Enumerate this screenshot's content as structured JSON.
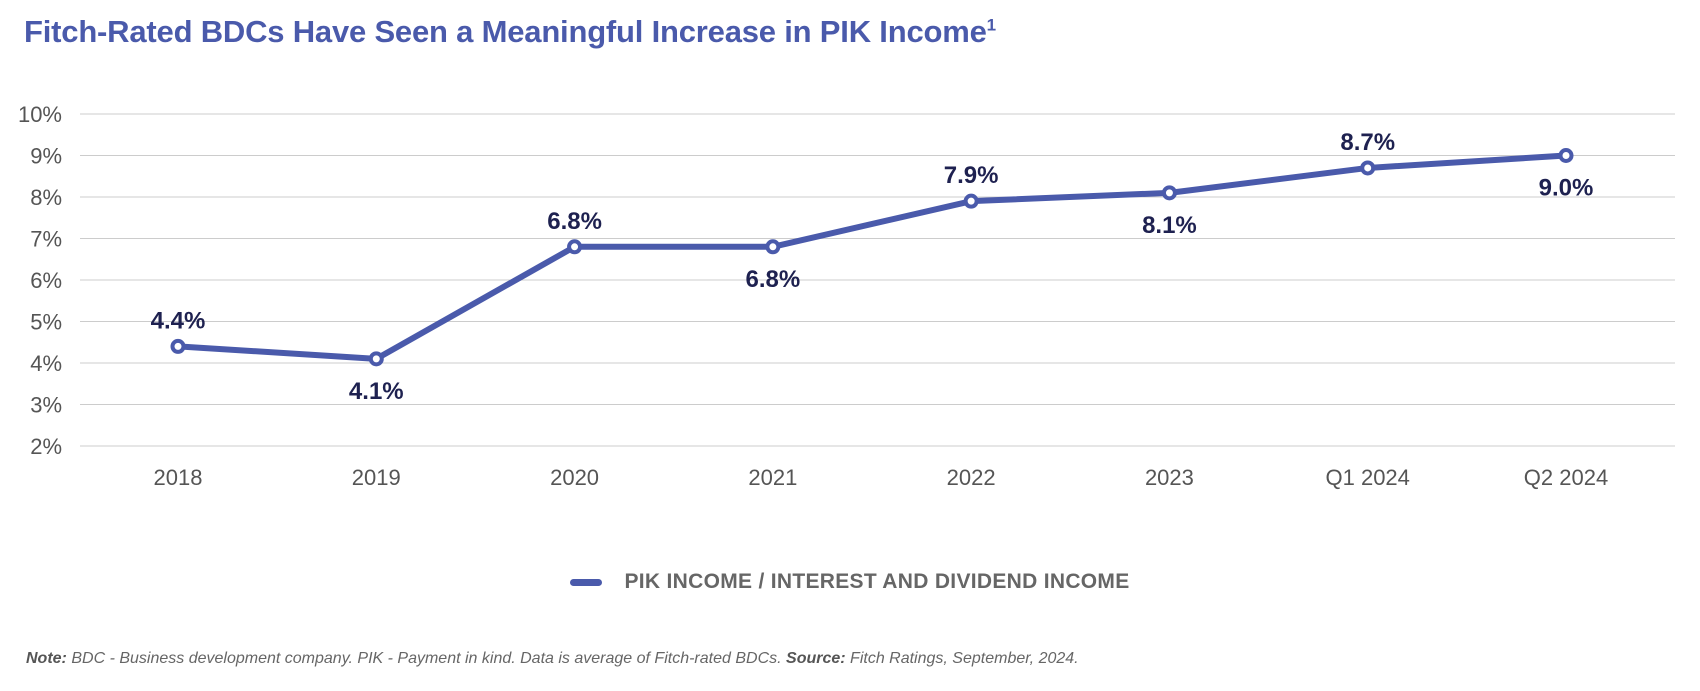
{
  "title": {
    "text": "Fitch-Rated BDCs Have Seen a Meaningful Increase in PIK Income",
    "superscript": "1"
  },
  "colors": {
    "title": "#4a5aab",
    "series": "#4a5aab",
    "data_label": "#1e2150",
    "grid": "#cccccc",
    "tick": "#555555",
    "footnote": "#666666"
  },
  "chart_data": {
    "type": "line",
    "title": "Fitch-Rated BDCs Have Seen a Meaningful Increase in PIK Income",
    "xlabel": "",
    "ylabel": "",
    "categories": [
      "2018",
      "2019",
      "2020",
      "2021",
      "2022",
      "2023",
      "Q1 2024",
      "Q2 2024"
    ],
    "series": [
      {
        "name": "PIK INCOME / INTEREST AND DIVIDEND INCOME",
        "values": [
          4.4,
          4.1,
          6.8,
          6.8,
          7.9,
          8.1,
          8.7,
          9.0
        ],
        "labels": [
          "4.4%",
          "4.1%",
          "6.8%",
          "6.8%",
          "7.9%",
          "8.1%",
          "8.7%",
          "9.0%"
        ],
        "label_positions": [
          "above",
          "below",
          "above",
          "below",
          "above",
          "below",
          "above",
          "below"
        ]
      }
    ],
    "ylim": [
      2,
      10
    ],
    "yticks": [
      2,
      3,
      4,
      5,
      6,
      7,
      8,
      9,
      10
    ],
    "ytick_labels": [
      "2%",
      "3%",
      "4%",
      "5%",
      "6%",
      "7%",
      "8%",
      "9%",
      "10%"
    ],
    "grid": true,
    "legend_position": "bottom-center"
  },
  "legend": {
    "label": "PIK INCOME / INTEREST AND DIVIDEND INCOME"
  },
  "footnote": {
    "note_label": "Note:",
    "note_text": " BDC - Business development company. PIK - Payment in kind. Data is average of Fitch-rated BDCs. ",
    "source_label": "Source:",
    "source_text": " Fitch Ratings, September, 2024."
  }
}
